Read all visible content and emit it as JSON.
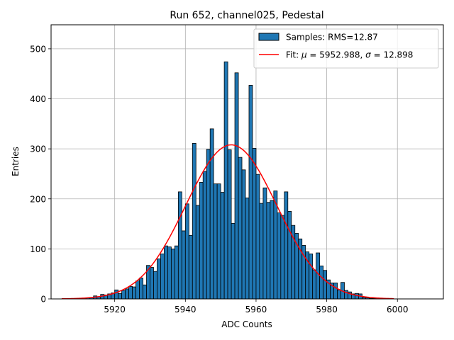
{
  "chart_data": {
    "type": "histogram",
    "title": "Run 652, channel025, Pedestal",
    "xlabel": "ADC Counts",
    "ylabel": "Entries",
    "xlim": [
      5902,
      6013
    ],
    "ylim": [
      0,
      548
    ],
    "xticks": [
      5920,
      5940,
      5960,
      5980,
      6000
    ],
    "yticks": [
      0,
      100,
      200,
      300,
      400,
      500
    ],
    "grid": true,
    "legend_position": "upper-right",
    "bar_color": "#1f77b4",
    "fit_color": "#ff0000",
    "bin_width": 1,
    "bins": [
      [
        5911,
        1
      ],
      [
        5912,
        2
      ],
      [
        5913,
        3
      ],
      [
        5914,
        6
      ],
      [
        5915,
        4
      ],
      [
        5916,
        9
      ],
      [
        5917,
        8
      ],
      [
        5918,
        10
      ],
      [
        5919,
        12
      ],
      [
        5920,
        18
      ],
      [
        5921,
        11
      ],
      [
        5922,
        17
      ],
      [
        5923,
        20
      ],
      [
        5924,
        25
      ],
      [
        5925,
        24
      ],
      [
        5926,
        36
      ],
      [
        5927,
        42
      ],
      [
        5928,
        28
      ],
      [
        5929,
        67
      ],
      [
        5930,
        63
      ],
      [
        5931,
        55
      ],
      [
        5932,
        80
      ],
      [
        5933,
        90
      ],
      [
        5934,
        106
      ],
      [
        5935,
        104
      ],
      [
        5936,
        100
      ],
      [
        5937,
        106
      ],
      [
        5938,
        214
      ],
      [
        5939,
        136
      ],
      [
        5940,
        190
      ],
      [
        5941,
        127
      ],
      [
        5942,
        311
      ],
      [
        5943,
        187
      ],
      [
        5944,
        233
      ],
      [
        5945,
        255
      ],
      [
        5946,
        299
      ],
      [
        5947,
        340
      ],
      [
        5948,
        230
      ],
      [
        5949,
        230
      ],
      [
        5950,
        213
      ],
      [
        5951,
        474
      ],
      [
        5952,
        298
      ],
      [
        5953,
        151
      ],
      [
        5954,
        452
      ],
      [
        5955,
        283
      ],
      [
        5956,
        258
      ],
      [
        5957,
        202
      ],
      [
        5958,
        427
      ],
      [
        5959,
        301
      ],
      [
        5960,
        249
      ],
      [
        5961,
        191
      ],
      [
        5962,
        222
      ],
      [
        5963,
        193
      ],
      [
        5964,
        197
      ],
      [
        5965,
        216
      ],
      [
        5966,
        172
      ],
      [
        5967,
        167
      ],
      [
        5968,
        214
      ],
      [
        5969,
        175
      ],
      [
        5970,
        147
      ],
      [
        5971,
        131
      ],
      [
        5972,
        120
      ],
      [
        5973,
        107
      ],
      [
        5974,
        94
      ],
      [
        5975,
        90
      ],
      [
        5976,
        58
      ],
      [
        5977,
        92
      ],
      [
        5978,
        66
      ],
      [
        5979,
        57
      ],
      [
        5980,
        38
      ],
      [
        5981,
        32
      ],
      [
        5982,
        32
      ],
      [
        5983,
        18
      ],
      [
        5984,
        33
      ],
      [
        5985,
        17
      ],
      [
        5986,
        14
      ],
      [
        5987,
        10
      ],
      [
        5988,
        11
      ],
      [
        5989,
        10
      ],
      [
        5990,
        3
      ],
      [
        5991,
        2
      ],
      [
        5992,
        1
      ],
      [
        5993,
        1
      ]
    ],
    "fit": {
      "mu": 5952.988,
      "sigma": 12.898,
      "amplitude": 308,
      "x_range": [
        5905,
        5999
      ]
    },
    "legend": [
      {
        "name": "Samples: RMS=12.87",
        "kind": "patch"
      },
      {
        "name": "fit",
        "kind": "line",
        "prefix": "Fit: ",
        "mu_symbol": "μ",
        "mu_value": " = 5952.988, ",
        "sigma_symbol": "σ",
        "sigma_value": " = 12.898"
      }
    ]
  }
}
